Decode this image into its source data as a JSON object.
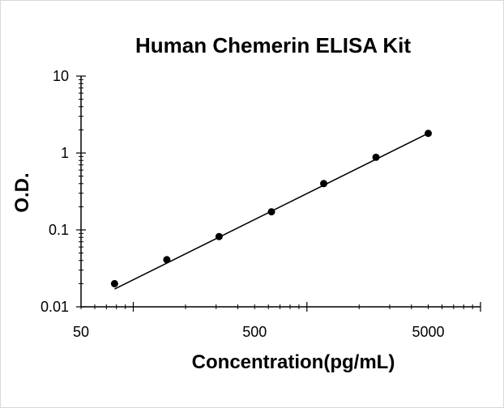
{
  "chart_data": {
    "type": "scatter",
    "title": "Human Chemerin ELISA Kit",
    "xlabel": "Concentration(pg/mL)",
    "ylabel": "O.D.",
    "x_scale": "log",
    "y_scale": "log",
    "xlim": [
      50,
      10000
    ],
    "ylim": [
      0.01,
      10
    ],
    "x_tick_labels": [
      "50",
      "500",
      "5000"
    ],
    "y_tick_labels": [
      "10",
      "1",
      "0.1",
      "0.01"
    ],
    "grid": false,
    "legend": "none",
    "series": [
      {
        "points": [
          {
            "x": 78,
            "y": 0.02
          },
          {
            "x": 156,
            "y": 0.041
          },
          {
            "x": 312,
            "y": 0.082
          },
          {
            "x": 625,
            "y": 0.172
          },
          {
            "x": 1250,
            "y": 0.4
          },
          {
            "x": 2500,
            "y": 0.88
          },
          {
            "x": 5000,
            "y": 1.8
          }
        ],
        "fit_line": [
          {
            "x": 78,
            "y": 0.017
          },
          {
            "x": 5000,
            "y": 1.8
          }
        ],
        "color": "#000000"
      }
    ]
  }
}
